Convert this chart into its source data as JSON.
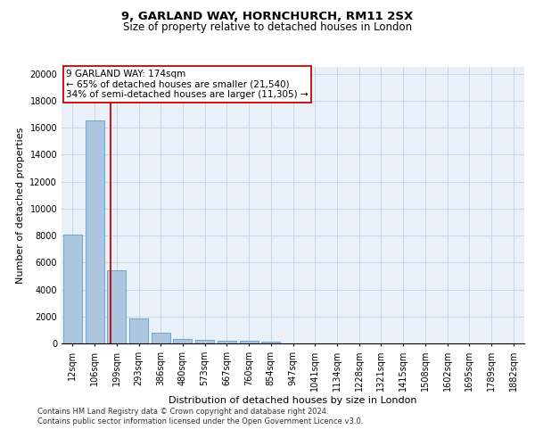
{
  "title_line1": "9, GARLAND WAY, HORNCHURCH, RM11 2SX",
  "title_line2": "Size of property relative to detached houses in London",
  "xlabel": "Distribution of detached houses by size in London",
  "ylabel": "Number of detached properties",
  "bar_labels": [
    "12sqm",
    "106sqm",
    "199sqm",
    "293sqm",
    "386sqm",
    "480sqm",
    "573sqm",
    "667sqm",
    "760sqm",
    "854sqm",
    "947sqm",
    "1041sqm",
    "1134sqm",
    "1228sqm",
    "1321sqm",
    "1415sqm",
    "1508sqm",
    "1602sqm",
    "1695sqm",
    "1789sqm",
    "1882sqm"
  ],
  "bar_values": [
    8100,
    16500,
    5400,
    1850,
    780,
    350,
    280,
    200,
    200,
    110,
    30,
    15,
    10,
    5,
    3,
    2,
    2,
    1,
    1,
    1,
    1
  ],
  "bar_color": "#adc6e0",
  "bar_edge_color": "#5a9fd4",
  "property_line_color": "#cc0000",
  "annotation_text": "9 GARLAND WAY: 174sqm\n← 65% of detached houses are smaller (21,540)\n34% of semi-detached houses are larger (11,305) →",
  "annotation_box_color": "#ffffff",
  "annotation_box_edge_color": "#cc0000",
  "ylim": [
    0,
    20500
  ],
  "yticks": [
    0,
    2000,
    4000,
    6000,
    8000,
    10000,
    12000,
    14000,
    16000,
    18000,
    20000
  ],
  "grid_color": "#c8d8e8",
  "background_color": "#eaf0f8",
  "footer_text": "Contains HM Land Registry data © Crown copyright and database right 2024.\nContains public sector information licensed under the Open Government Licence v3.0.",
  "title_fontsize": 9.5,
  "subtitle_fontsize": 8.5,
  "axis_label_fontsize": 8,
  "tick_fontsize": 7,
  "annotation_fontsize": 7.5,
  "footer_fontsize": 6
}
